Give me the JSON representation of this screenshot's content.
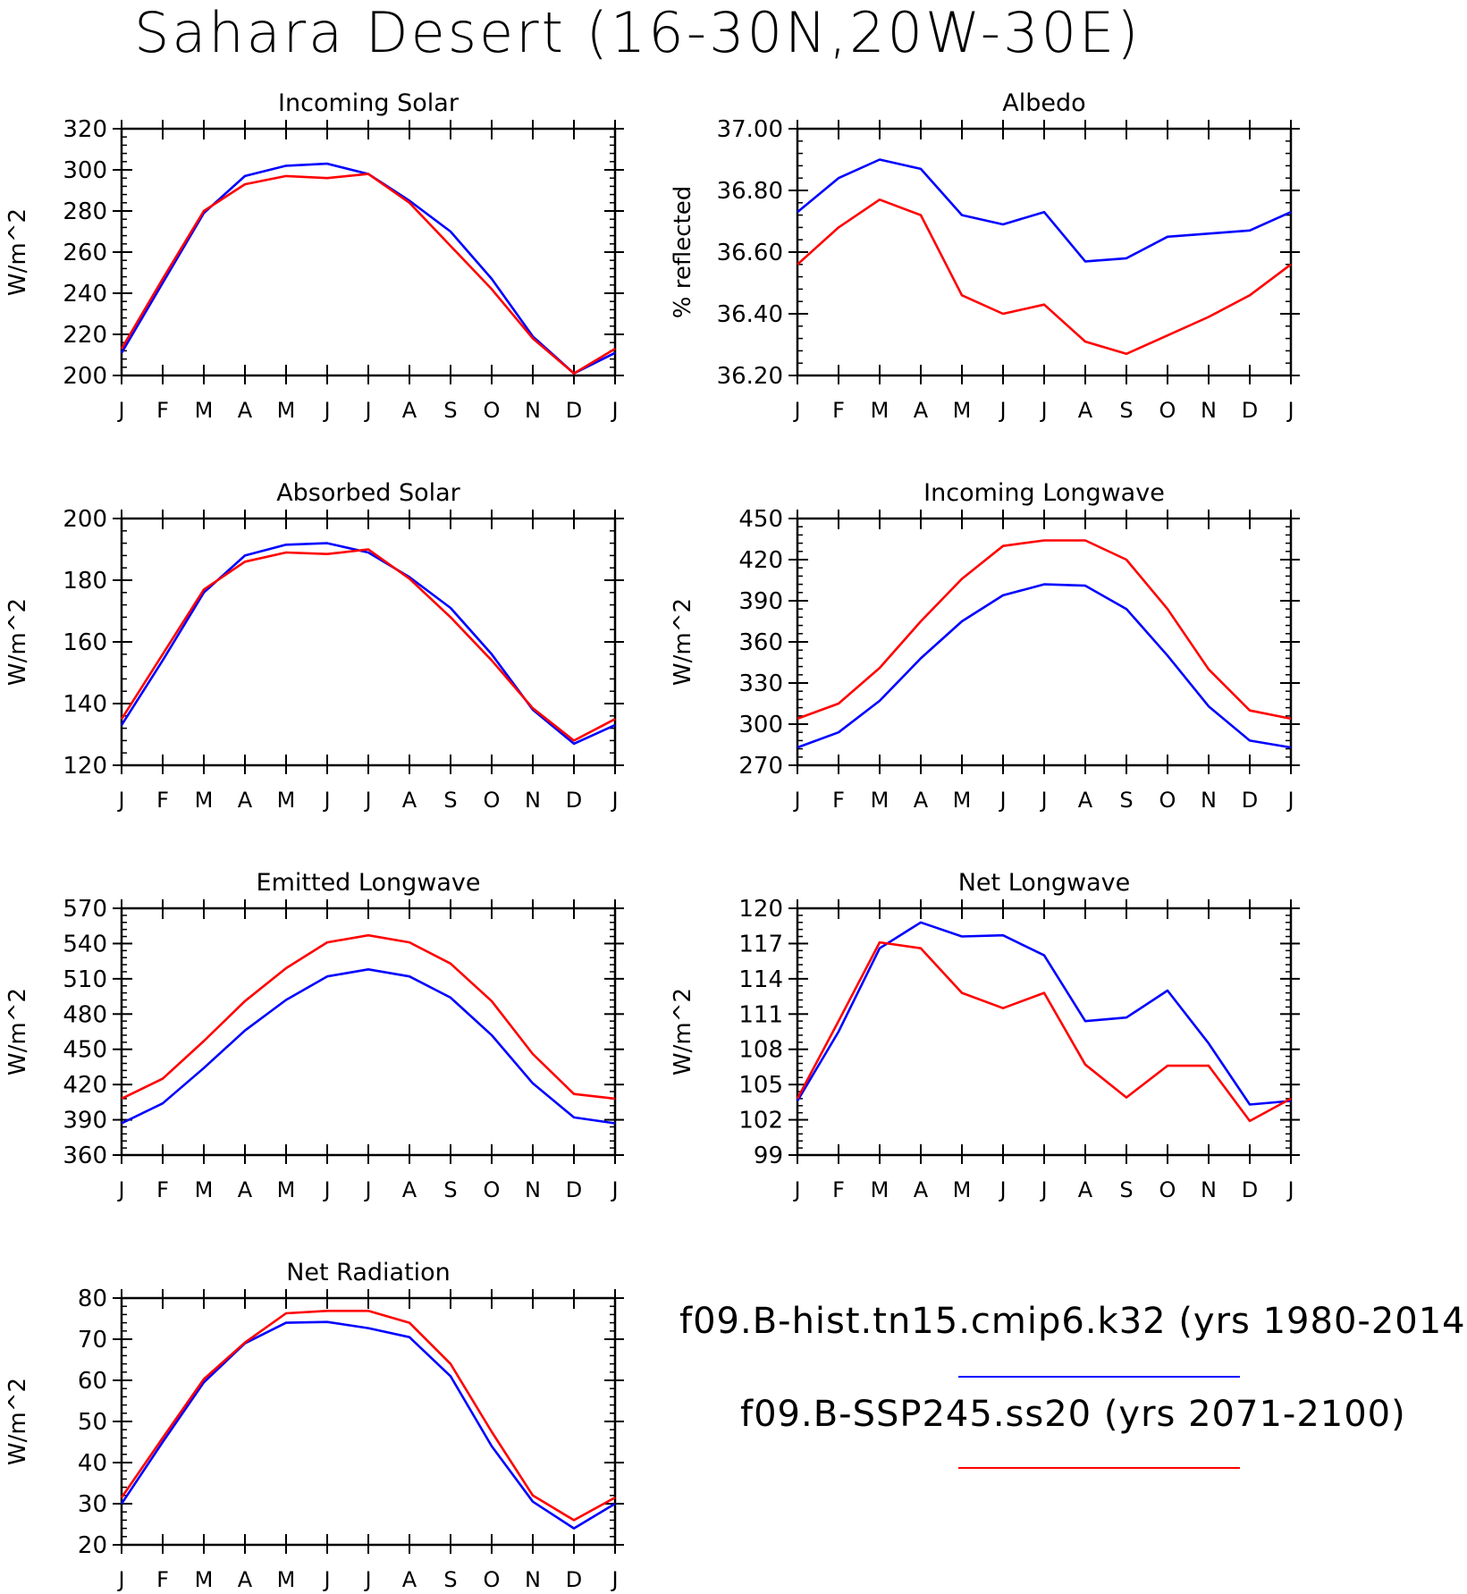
{
  "title": "Sahara Desert (16-30N,20W-30E)",
  "legend": {
    "entries": [
      {
        "label": "f09.B-hist.tn15.cmip6.k32 (yrs 1980-2014)",
        "color": "#0000ff"
      },
      {
        "label": "f09.B-SSP245.ss20 (yrs 2071-2100)",
        "color": "#ff0000"
      }
    ]
  },
  "months": [
    "J",
    "F",
    "M",
    "A",
    "M",
    "J",
    "J",
    "A",
    "S",
    "O",
    "N",
    "D",
    "J"
  ],
  "chart_data": [
    {
      "type": "line",
      "title": "Incoming Solar",
      "ylabel": "W/m^2",
      "ylim": [
        200,
        320
      ],
      "yticks": [
        "200",
        "220",
        "240",
        "260",
        "280",
        "300",
        "320"
      ],
      "series": [
        {
          "name": "f09.B-hist.tn15.cmip6.k32 (yrs 1980-2014)",
          "color": "#0000ff",
          "values": [
            211,
            245,
            279,
            297,
            302,
            303,
            298,
            285,
            270,
            247,
            219,
            201,
            211
          ]
        },
        {
          "name": "f09.B-SSP245.ss20 (yrs 2071-2100)",
          "color": "#ff0000",
          "values": [
            213,
            247,
            280,
            293,
            297,
            296,
            298,
            284,
            263,
            242,
            218,
            201,
            213
          ]
        }
      ]
    },
    {
      "type": "line",
      "title": "Albedo",
      "ylabel": "% reflected",
      "ylim": [
        36.2,
        37.0
      ],
      "yticks": [
        "36.20",
        "36.40",
        "36.60",
        "36.80",
        "37.00"
      ],
      "series": [
        {
          "name": "f09.B-hist.tn15.cmip6.k32 (yrs 1980-2014)",
          "color": "#0000ff",
          "values": [
            36.73,
            36.84,
            36.9,
            36.87,
            36.72,
            36.69,
            36.73,
            36.57,
            36.58,
            36.65,
            36.66,
            36.67,
            36.73
          ]
        },
        {
          "name": "f09.B-SSP245.ss20 (yrs 2071-2100)",
          "color": "#ff0000",
          "values": [
            36.56,
            36.68,
            36.77,
            36.72,
            36.46,
            36.4,
            36.43,
            36.31,
            36.27,
            36.33,
            36.39,
            36.46,
            36.56
          ]
        }
      ]
    },
    {
      "type": "line",
      "title": "Absorbed Solar",
      "ylabel": "W/m^2",
      "ylim": [
        120,
        200
      ],
      "yticks": [
        "120",
        "140",
        "160",
        "180",
        "200"
      ],
      "series": [
        {
          "name": "f09.B-hist.tn15.cmip6.k32 (yrs 1980-2014)",
          "color": "#0000ff",
          "values": [
            133,
            154,
            176,
            188,
            191.5,
            192,
            189,
            181,
            171,
            156,
            138,
            127,
            133
          ]
        },
        {
          "name": "f09.B-SSP245.ss20 (yrs 2071-2100)",
          "color": "#ff0000",
          "values": [
            135,
            156,
            177,
            186,
            189,
            188.5,
            190,
            180.5,
            168,
            154,
            138.5,
            128,
            135
          ]
        }
      ]
    },
    {
      "type": "line",
      "title": "Incoming Longwave",
      "ylabel": "W/m^2",
      "ylim": [
        270,
        450
      ],
      "yticks": [
        "270",
        "300",
        "330",
        "360",
        "390",
        "420",
        "450"
      ],
      "series": [
        {
          "name": "f09.B-hist.tn15.cmip6.k32 (yrs 1980-2014)",
          "color": "#0000ff",
          "values": [
            283,
            294,
            317,
            348,
            375,
            394,
            402,
            401,
            384,
            350,
            313,
            288,
            283
          ]
        },
        {
          "name": "f09.B-SSP245.ss20 (yrs 2071-2100)",
          "color": "#ff0000",
          "values": [
            304,
            315,
            341,
            375,
            406,
            430,
            434,
            434,
            420,
            384,
            340,
            310,
            304
          ]
        }
      ]
    },
    {
      "type": "line",
      "title": "Emitted Longwave",
      "ylabel": "W/m^2",
      "ylim": [
        360,
        570
      ],
      "yticks": [
        "360",
        "390",
        "420",
        "450",
        "480",
        "510",
        "540",
        "570"
      ],
      "series": [
        {
          "name": "f09.B-hist.tn15.cmip6.k32 (yrs 1980-2014)",
          "color": "#0000ff",
          "values": [
            387,
            404,
            434,
            466,
            492,
            512,
            518,
            512,
            494,
            462,
            421,
            392,
            387
          ]
        },
        {
          "name": "f09.B-SSP245.ss20 (yrs 2071-2100)",
          "color": "#ff0000",
          "values": [
            408,
            425,
            457,
            491,
            519,
            541,
            547,
            541,
            523,
            491,
            446,
            412,
            408
          ]
        }
      ]
    },
    {
      "type": "line",
      "title": "Net Longwave",
      "ylabel": "W/m^2",
      "ylim": [
        99,
        120
      ],
      "yticks": [
        "99",
        "102",
        "105",
        "108",
        "111",
        "114",
        "117",
        "120"
      ],
      "series": [
        {
          "name": "f09.B-hist.tn15.cmip6.k32 (yrs 1980-2014)",
          "color": "#0000ff",
          "values": [
            103.6,
            109.5,
            116.6,
            118.8,
            117.6,
            117.7,
            116.0,
            110.4,
            110.7,
            113.0,
            108.5,
            103.3,
            103.6
          ]
        },
        {
          "name": "f09.B-SSP245.ss20 (yrs 2071-2100)",
          "color": "#ff0000",
          "values": [
            103.8,
            110.4,
            117.1,
            116.6,
            112.8,
            111.5,
            112.8,
            106.7,
            103.9,
            106.6,
            106.6,
            101.9,
            103.8
          ]
        }
      ]
    },
    {
      "type": "line",
      "title": "Net Radiation",
      "ylabel": "W/m^2",
      "ylim": [
        20,
        80
      ],
      "yticks": [
        "20",
        "30",
        "40",
        "50",
        "60",
        "70",
        "80"
      ],
      "series": [
        {
          "name": "f09.B-hist.tn15.cmip6.k32 (yrs 1980-2014)",
          "color": "#0000ff",
          "values": [
            30,
            45,
            59.5,
            69,
            74,
            74.2,
            72.7,
            70.5,
            61,
            44,
            30.5,
            24,
            30
          ]
        },
        {
          "name": "f09.B-SSP245.ss20 (yrs 2071-2100)",
          "color": "#ff0000",
          "values": [
            31.5,
            46,
            60.3,
            69.2,
            76.3,
            76.9,
            76.9,
            74,
            64,
            47.5,
            32,
            26,
            31.5
          ]
        }
      ]
    }
  ]
}
